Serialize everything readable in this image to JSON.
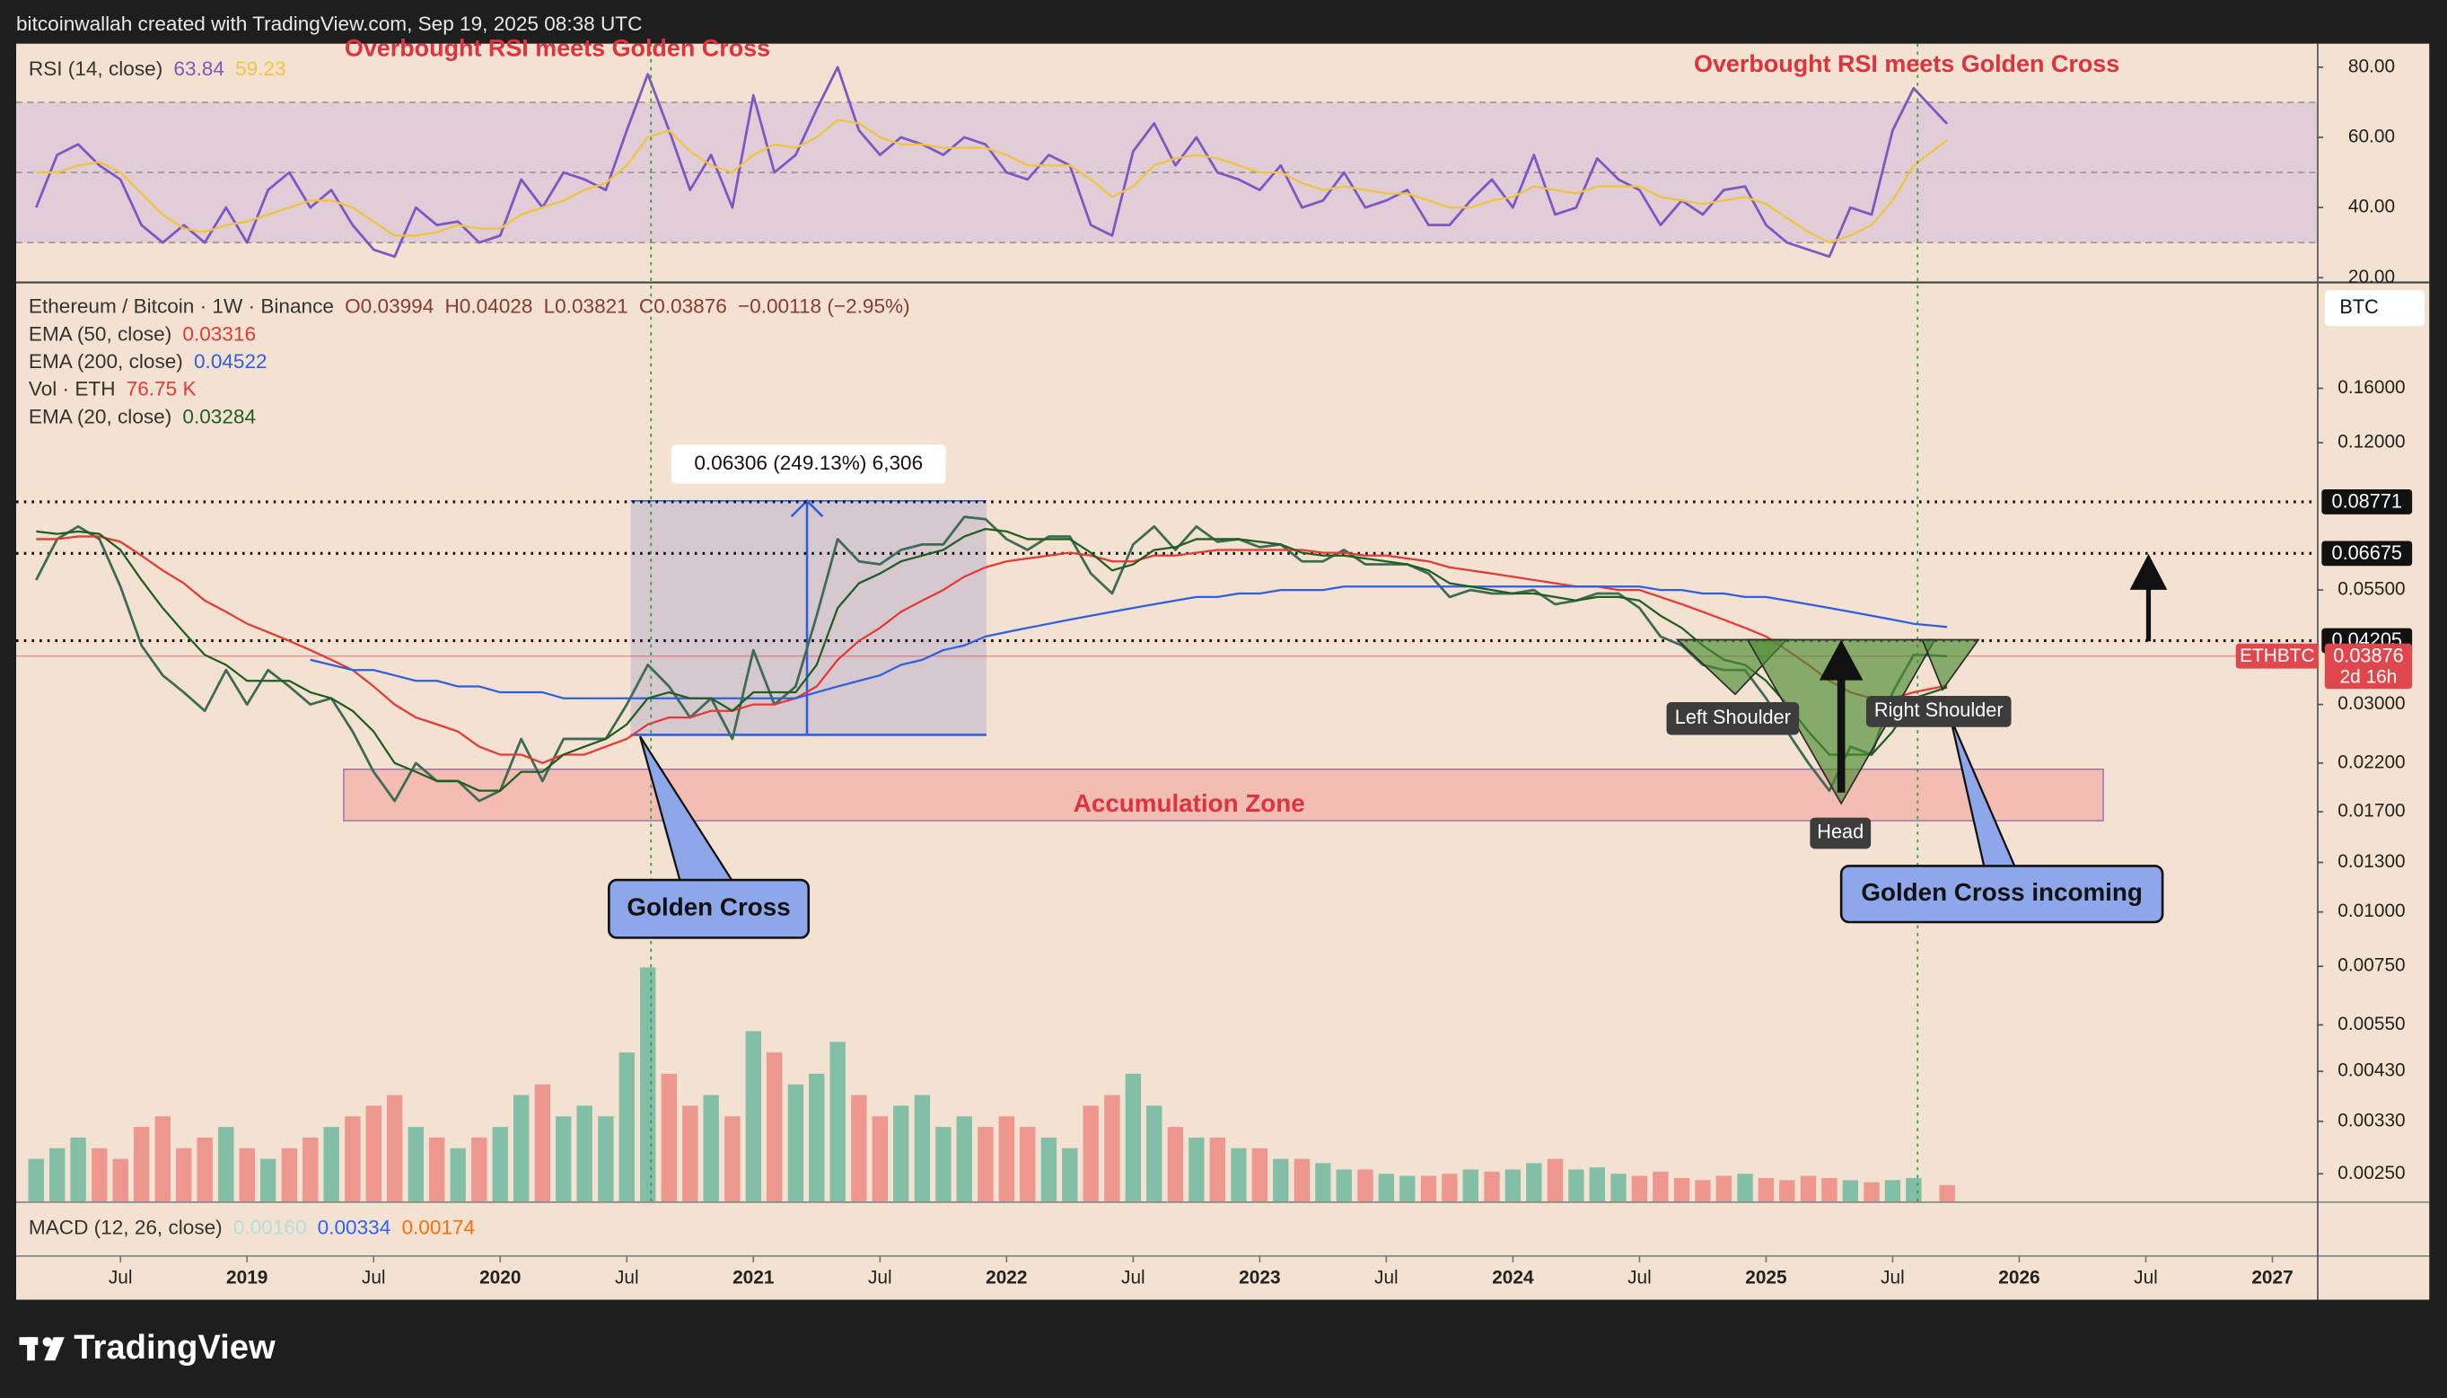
{
  "header": "bitcoinwallah created with TradingView.com, Sep 19, 2025 08:38 UTC",
  "brand": "TradingView",
  "chart_data": [
    {
      "type": "line",
      "title": "RSI (14, close)",
      "annotations": [
        "Overbought RSI meets Golden Cross",
        "Overbought RSI meets Golden Cross"
      ],
      "ylim": [
        19.1,
        86.7
      ],
      "yticks": [
        {
          "value": 80,
          "label": "80.00"
        },
        {
          "value": 60,
          "label": "60.00"
        },
        {
          "value": 40,
          "label": "40.00"
        },
        {
          "value": 20,
          "label": "20.00"
        }
      ],
      "levels": [
        30,
        50,
        70
      ],
      "band_color": "#c9b3de",
      "series": [
        {
          "color": "#7e57c2",
          "legend_value": 63.84,
          "values": [
            40,
            55,
            58,
            52,
            48,
            35,
            30,
            35,
            30,
            40,
            30,
            45,
            50,
            40,
            45,
            35,
            28,
            26,
            40,
            35,
            36,
            30,
            32,
            48,
            40,
            50,
            48,
            45,
            62,
            78,
            62,
            45,
            55,
            40,
            72,
            50,
            55,
            68,
            80,
            62,
            55,
            60,
            58,
            55,
            60,
            58,
            50,
            48,
            55,
            52,
            35,
            32,
            56,
            64,
            52,
            60,
            50,
            48,
            45,
            52,
            40,
            42,
            50,
            40,
            42,
            45,
            35,
            35,
            42,
            48,
            40,
            55,
            38,
            40,
            54,
            48,
            45,
            35,
            42,
            38,
            45,
            46,
            35,
            30,
            28,
            26,
            40,
            38,
            62,
            74,
            63.84
          ]
        },
        {
          "color": "#f0c43c",
          "legend_value": 59.23,
          "values": [
            50,
            50,
            52,
            53,
            50,
            44,
            38,
            34,
            33,
            35,
            36,
            38,
            40,
            42,
            42,
            40,
            36,
            32,
            32,
            33,
            35,
            34,
            34,
            38,
            40,
            42,
            45,
            47,
            52,
            60,
            62,
            56,
            52,
            50,
            55,
            58,
            57,
            60,
            65,
            64,
            60,
            58,
            58,
            57,
            57,
            57,
            55,
            52,
            52,
            52,
            48,
            43,
            46,
            52,
            54,
            55,
            54,
            52,
            50,
            50,
            47,
            45,
            46,
            45,
            44,
            44,
            42,
            40,
            40,
            42,
            43,
            46,
            45,
            44,
            46,
            46,
            46,
            43,
            42,
            41,
            42,
            43,
            41,
            37,
            33,
            30,
            32,
            35,
            42,
            52,
            59.23
          ]
        }
      ]
    },
    {
      "type": "line",
      "log": true,
      "title": "Ethereum / Bitcoin · 1W · Binance",
      "ohlc_legend": [
        "O0.03994",
        "H0.04028",
        "L0.03821",
        "C0.03876",
        "−0.00118 (−2.95%)"
      ],
      "currency": "BTC",
      "symbol": "ETHBTC",
      "last": 0.03876,
      "countdown": "2d 16h",
      "last_color": "#e0474c",
      "levels": [
        0.08771,
        0.06675,
        0.04205
      ],
      "measure_label": "0.06306 (249.13%) 6,306",
      "zone_label": "Accumulation Zone",
      "callouts": [
        "Golden Cross",
        "Golden Cross incoming"
      ],
      "pattern_labels": [
        "Left Shoulder",
        "Head",
        "Right Shoulder"
      ],
      "xlim": [
        2018.088,
        2027.176
      ],
      "xticks": [
        {
          "value": 2018.5,
          "label": "Jul"
        },
        2019,
        {
          "value": 2019.5,
          "label": "Jul"
        },
        2020,
        {
          "value": 2020.5,
          "label": "Jul"
        },
        2021,
        {
          "value": 2021.5,
          "label": "Jul"
        },
        2022,
        {
          "value": 2022.5,
          "label": "Jul"
        },
        2023,
        {
          "value": 2023.5,
          "label": "Jul"
        },
        2024,
        {
          "value": 2024.5,
          "label": "Jul"
        },
        2025,
        {
          "value": 2025.5,
          "label": "Jul"
        },
        2026,
        {
          "value": 2026.5,
          "label": "Jul"
        },
        2027
      ],
      "ylim": [
        0.00216,
        0.278
      ],
      "yticks": [
        {
          "value": 0.16,
          "label": "0.16000"
        },
        {
          "value": 0.12,
          "label": "0.12000"
        },
        {
          "value": 0.055,
          "label": "0.05500"
        },
        {
          "value": 0.03,
          "label": "0.03000"
        },
        {
          "value": 0.022,
          "label": "0.02200"
        },
        {
          "value": 0.017,
          "label": "0.01700"
        },
        {
          "value": 0.013,
          "label": "0.01300"
        },
        {
          "value": 0.01,
          "label": "0.01000"
        },
        {
          "value": 0.0075,
          "label": "0.00750"
        },
        {
          "value": 0.0055,
          "label": "0.00550"
        },
        {
          "value": 0.0043,
          "label": "0.00430"
        },
        {
          "value": 0.0033,
          "label": "0.00330"
        },
        {
          "value": 0.0025,
          "label": "0.00250"
        }
      ],
      "x": [
        2018.167,
        2018.25,
        2018.333,
        2018.417,
        2018.5,
        2018.583,
        2018.667,
        2018.75,
        2018.833,
        2018.917,
        2019,
        2019.083,
        2019.167,
        2019.25,
        2019.333,
        2019.417,
        2019.5,
        2019.583,
        2019.667,
        2019.75,
        2019.833,
        2019.917,
        2020,
        2020.083,
        2020.167,
        2020.25,
        2020.333,
        2020.417,
        2020.5,
        2020.583,
        2020.667,
        2020.75,
        2020.833,
        2020.917,
        2021,
        2021.083,
        2021.167,
        2021.25,
        2021.333,
        2021.417,
        2021.5,
        2021.583,
        2021.667,
        2021.75,
        2021.833,
        2021.917,
        2022,
        2022.083,
        2022.167,
        2022.25,
        2022.333,
        2022.417,
        2022.5,
        2022.583,
        2022.667,
        2022.75,
        2022.833,
        2022.917,
        2023,
        2023.083,
        2023.167,
        2023.25,
        2023.333,
        2023.417,
        2023.5,
        2023.583,
        2023.667,
        2023.75,
        2023.833,
        2023.917,
        2024,
        2024.083,
        2024.167,
        2024.25,
        2024.333,
        2024.417,
        2024.5,
        2024.583,
        2024.667,
        2024.75,
        2024.833,
        2024.917,
        2025,
        2025.083,
        2025.167,
        2025.25,
        2025.333,
        2025.417,
        2025.5,
        2025.583,
        2025.715
      ],
      "series": [
        {
          "color": "#3d6b55",
          "values": [
            0.058,
            0.072,
            0.077,
            0.072,
            0.056,
            0.041,
            0.035,
            0.032,
            0.029,
            0.036,
            0.03,
            0.036,
            0.033,
            0.03,
            0.031,
            0.026,
            0.021,
            0.018,
            0.022,
            0.02,
            0.02,
            0.018,
            0.019,
            0.025,
            0.02,
            0.025,
            0.025,
            0.025,
            0.03,
            0.037,
            0.033,
            0.028,
            0.031,
            0.025,
            0.04,
            0.03,
            0.033,
            0.048,
            0.072,
            0.064,
            0.063,
            0.068,
            0.07,
            0.07,
            0.081,
            0.08,
            0.072,
            0.068,
            0.073,
            0.073,
            0.06,
            0.054,
            0.07,
            0.077,
            0.068,
            0.077,
            0.071,
            0.072,
            0.069,
            0.07,
            0.064,
            0.064,
            0.068,
            0.063,
            0.063,
            0.063,
            0.06,
            0.053,
            0.055,
            0.054,
            0.054,
            0.055,
            0.051,
            0.052,
            0.054,
            0.054,
            0.05,
            0.043,
            0.041,
            0.037,
            0.036,
            0.036,
            0.031,
            0.026,
            0.022,
            0.019,
            0.024,
            0.023,
            0.032,
            0.039,
            0.03876
          ]
        },
        {
          "name": "EMA (50, close)",
          "color": "#e53935",
          "legend_value": 0.03316,
          "values": [
            0.072,
            0.072,
            0.073,
            0.073,
            0.071,
            0.066,
            0.061,
            0.057,
            0.052,
            0.049,
            0.046,
            0.044,
            0.042,
            0.04,
            0.038,
            0.036,
            0.033,
            0.03,
            0.028,
            0.027,
            0.026,
            0.024,
            0.023,
            0.023,
            0.022,
            0.023,
            0.023,
            0.024,
            0.025,
            0.027,
            0.028,
            0.028,
            0.029,
            0.029,
            0.03,
            0.03,
            0.031,
            0.033,
            0.038,
            0.042,
            0.045,
            0.049,
            0.052,
            0.055,
            0.059,
            0.062,
            0.064,
            0.065,
            0.066,
            0.067,
            0.066,
            0.064,
            0.064,
            0.066,
            0.066,
            0.067,
            0.068,
            0.068,
            0.068,
            0.068,
            0.068,
            0.067,
            0.067,
            0.066,
            0.066,
            0.065,
            0.064,
            0.062,
            0.061,
            0.06,
            0.059,
            0.058,
            0.057,
            0.056,
            0.056,
            0.055,
            0.055,
            0.053,
            0.051,
            0.049,
            0.047,
            0.045,
            0.043,
            0.04,
            0.037,
            0.034,
            0.032,
            0.031,
            0.031,
            0.032,
            0.03316
          ]
        },
        {
          "name": "EMA (200, close)",
          "color": "#2f5fe0",
          "legend_value": 0.04522,
          "values": [
            null,
            null,
            null,
            null,
            null,
            null,
            null,
            null,
            null,
            null,
            null,
            null,
            null,
            0.038,
            0.037,
            0.036,
            0.036,
            0.035,
            0.034,
            0.034,
            0.033,
            0.033,
            0.032,
            0.032,
            0.032,
            0.031,
            0.031,
            0.031,
            0.031,
            0.031,
            0.031,
            0.031,
            0.031,
            0.031,
            0.031,
            0.031,
            0.031,
            0.032,
            0.033,
            0.034,
            0.035,
            0.037,
            0.038,
            0.04,
            0.041,
            0.043,
            0.044,
            0.045,
            0.046,
            0.047,
            0.048,
            0.049,
            0.05,
            0.051,
            0.052,
            0.053,
            0.053,
            0.054,
            0.054,
            0.055,
            0.055,
            0.055,
            0.056,
            0.056,
            0.056,
            0.056,
            0.056,
            0.056,
            0.056,
            0.056,
            0.056,
            0.056,
            0.056,
            0.056,
            0.056,
            0.056,
            0.056,
            0.055,
            0.055,
            0.054,
            0.054,
            0.053,
            0.053,
            0.052,
            0.051,
            0.05,
            0.049,
            0.048,
            0.047,
            0.046,
            0.04522
          ]
        },
        {
          "name": "EMA (20, close)",
          "color": "#1f5e20",
          "legend_value": 0.03284,
          "values": [
            0.075,
            0.074,
            0.075,
            0.074,
            0.068,
            0.058,
            0.05,
            0.044,
            0.039,
            0.037,
            0.034,
            0.034,
            0.034,
            0.032,
            0.031,
            0.029,
            0.026,
            0.022,
            0.021,
            0.02,
            0.02,
            0.019,
            0.019,
            0.021,
            0.021,
            0.023,
            0.024,
            0.025,
            0.027,
            0.031,
            0.032,
            0.031,
            0.031,
            0.029,
            0.032,
            0.032,
            0.032,
            0.037,
            0.05,
            0.057,
            0.06,
            0.064,
            0.066,
            0.068,
            0.073,
            0.076,
            0.075,
            0.072,
            0.072,
            0.072,
            0.067,
            0.061,
            0.063,
            0.068,
            0.069,
            0.072,
            0.072,
            0.072,
            0.071,
            0.07,
            0.067,
            0.066,
            0.066,
            0.065,
            0.064,
            0.063,
            0.061,
            0.057,
            0.056,
            0.055,
            0.054,
            0.054,
            0.053,
            0.052,
            0.053,
            0.053,
            0.052,
            0.048,
            0.045,
            0.041,
            0.038,
            0.037,
            0.034,
            0.03,
            0.026,
            0.023,
            0.023,
            0.023,
            0.026,
            0.031,
            0.03284
          ]
        }
      ]
    },
    {
      "type": "bar",
      "title": "Vol · ETH",
      "legend_value": "76.75 K",
      "legend_color": "#e53935",
      "up_color": "#6fb8a0",
      "down_color": "#ec8a84",
      "values": [
        200,
        250,
        300,
        250,
        200,
        350,
        400,
        250,
        300,
        350,
        250,
        200,
        250,
        300,
        350,
        400,
        450,
        500,
        350,
        300,
        250,
        300,
        350,
        500,
        550,
        400,
        450,
        400,
        700,
        1100,
        600,
        450,
        500,
        400,
        800,
        700,
        550,
        600,
        750,
        500,
        400,
        450,
        500,
        350,
        400,
        350,
        400,
        350,
        300,
        250,
        450,
        500,
        600,
        450,
        350,
        300,
        300,
        250,
        250,
        200,
        200,
        180,
        150,
        150,
        130,
        120,
        120,
        130,
        150,
        140,
        150,
        180,
        200,
        150,
        160,
        130,
        120,
        140,
        110,
        100,
        120,
        130,
        110,
        100,
        120,
        110,
        100,
        90,
        100,
        110,
        76.75
      ]
    },
    {
      "type": "line",
      "title": "MACD (12, 26, close)",
      "legend_values": [
        {
          "value": 0.0016,
          "label": "0.00160"
        },
        {
          "value": 0.00334,
          "label": "0.00334"
        },
        {
          "value": 0.00174,
          "label": "0.00174"
        }
      ],
      "legend_colors": [
        "#b2dfdb",
        "#2962ff",
        "#ff6d00"
      ]
    }
  ]
}
